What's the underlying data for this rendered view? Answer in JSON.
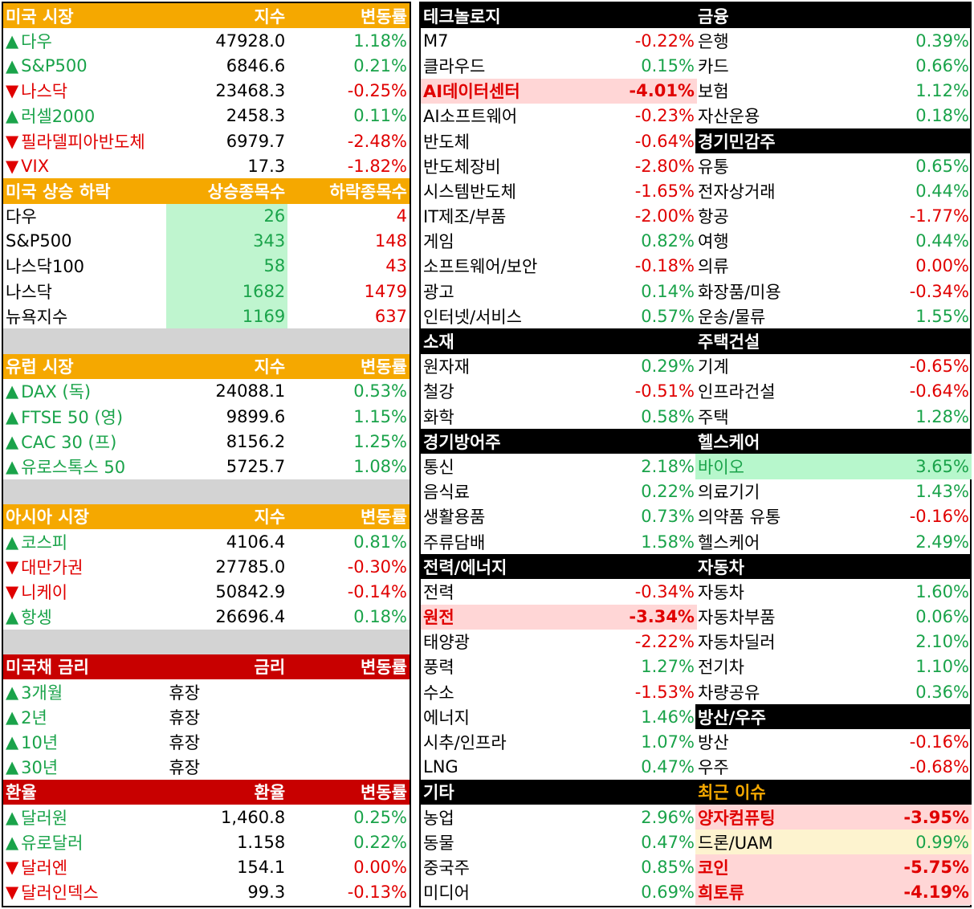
{
  "colors": {
    "up": "#1aa34a",
    "down": "#e00000",
    "header_orange": "#f5a800",
    "header_red": "#c80000",
    "header_black": "#000000",
    "gap": "#d3d3d3"
  },
  "left": {
    "us_market": {
      "header": [
        "미국 시장",
        "지수",
        "변동률"
      ],
      "rows": [
        {
          "dir": "up",
          "name": "다우",
          "value": "47928.0",
          "change": "1.18%"
        },
        {
          "dir": "up",
          "name": "S&P500",
          "value": "6846.6",
          "change": "0.21%"
        },
        {
          "dir": "down",
          "name": "나스닥",
          "value": "23468.3",
          "change": "-0.25%"
        },
        {
          "dir": "up",
          "name": "러셀2000",
          "value": "2458.3",
          "change": "0.11%"
        },
        {
          "dir": "down",
          "name": "필라델피아반도체",
          "value": "6979.7",
          "change": "-2.48%"
        },
        {
          "dir": "down",
          "name": "VIX",
          "value": "17.3",
          "change": "-1.82%"
        }
      ]
    },
    "breadth": {
      "header": [
        "미국 상승 하락",
        "상승종목수",
        "하락종목수"
      ],
      "rows": [
        {
          "name": "다우",
          "up": "26",
          "down": "4"
        },
        {
          "name": "S&P500",
          "up": "343",
          "down": "148"
        },
        {
          "name": "나스닥100",
          "up": "58",
          "down": "43"
        },
        {
          "name": "나스닥",
          "up": "1682",
          "down": "1479"
        },
        {
          "name": "뉴욕지수",
          "up": "1169",
          "down": "637"
        }
      ]
    },
    "europe": {
      "header": [
        "유럽 시장",
        "지수",
        "변동률"
      ],
      "rows": [
        {
          "dir": "up",
          "name": "DAX (독)",
          "value": "24088.1",
          "change": "0.53%"
        },
        {
          "dir": "up",
          "name": "FTSE 50 (영)",
          "value": "9899.6",
          "change": "1.15%"
        },
        {
          "dir": "up",
          "name": "CAC 30 (프)",
          "value": "8156.2",
          "change": "1.25%"
        },
        {
          "dir": "up",
          "name": "유로스톡스 50",
          "value": "5725.7",
          "change": "1.08%"
        }
      ]
    },
    "asia": {
      "header": [
        "아시아 시장",
        "지수",
        "변동률"
      ],
      "rows": [
        {
          "dir": "up",
          "name": "코스피",
          "value": "4106.4",
          "change": "0.81%"
        },
        {
          "dir": "down",
          "name": "대만가권",
          "value": "27785.0",
          "change": "-0.30%"
        },
        {
          "dir": "down",
          "name": "니케이",
          "value": "50842.9",
          "change": "-0.14%"
        },
        {
          "dir": "up",
          "name": "항셍",
          "value": "26696.4",
          "change": "0.18%"
        }
      ]
    },
    "treasury": {
      "header": [
        "미국채 금리",
        "금리",
        "변동률"
      ],
      "rows": [
        {
          "dir": "up",
          "name": "3개월",
          "value": "휴장",
          "change": ""
        },
        {
          "dir": "up",
          "name": "2년",
          "value": "휴장",
          "change": ""
        },
        {
          "dir": "up",
          "name": "10년",
          "value": "휴장",
          "change": ""
        },
        {
          "dir": "up",
          "name": "30년",
          "value": "휴장",
          "change": ""
        }
      ]
    },
    "fx": {
      "header": [
        "환율",
        "환율",
        "변동률"
      ],
      "rows": [
        {
          "dir": "up",
          "name": "달러원",
          "value": "1,460.8",
          "change": "0.25%"
        },
        {
          "dir": "up",
          "name": "유로달러",
          "value": "1.158",
          "change": "0.22%"
        },
        {
          "dir": "down",
          "name": "달러엔",
          "value": "154.1",
          "change": "0.00%"
        },
        {
          "dir": "down",
          "name": "달러인덱스",
          "value": "99.3",
          "change": "-0.13%"
        }
      ]
    }
  },
  "right": {
    "col1": [
      {
        "type": "header",
        "label": "테크놀로지"
      },
      {
        "name": "M7",
        "change": "-0.22%",
        "dir": "down"
      },
      {
        "name": "클라우드",
        "change": "0.15%",
        "dir": "up"
      },
      {
        "name": "AI데이터센터",
        "change": "-4.01%",
        "dir": "down",
        "highlight": "pink",
        "bold": true
      },
      {
        "name": "AI소프트웨어",
        "change": "-0.23%",
        "dir": "down"
      },
      {
        "name": "반도체",
        "change": "-0.64%",
        "dir": "down"
      },
      {
        "name": "반도체장비",
        "change": "-2.80%",
        "dir": "down"
      },
      {
        "name": "시스템반도체",
        "change": "-1.65%",
        "dir": "down"
      },
      {
        "name": "IT제조/부품",
        "change": "-2.00%",
        "dir": "down"
      },
      {
        "name": "게임",
        "change": "0.82%",
        "dir": "up"
      },
      {
        "name": "소프트웨어/보안",
        "change": "-0.18%",
        "dir": "down"
      },
      {
        "name": "광고",
        "change": "0.14%",
        "dir": "up"
      },
      {
        "name": "인터넷/서비스",
        "change": "0.57%",
        "dir": "up"
      },
      {
        "type": "header",
        "label": "소재"
      },
      {
        "name": "원자재",
        "change": "0.29%",
        "dir": "up"
      },
      {
        "name": "철강",
        "change": "-0.51%",
        "dir": "down"
      },
      {
        "name": "화학",
        "change": "0.58%",
        "dir": "up"
      },
      {
        "type": "header",
        "label": "경기방어주"
      },
      {
        "name": "통신",
        "change": "2.18%",
        "dir": "up"
      },
      {
        "name": "음식료",
        "change": "0.22%",
        "dir": "up"
      },
      {
        "name": "생활용품",
        "change": "0.73%",
        "dir": "up"
      },
      {
        "name": "주류담배",
        "change": "1.58%",
        "dir": "up"
      },
      {
        "type": "header",
        "label": "전력/에너지"
      },
      {
        "name": "전력",
        "change": "-0.34%",
        "dir": "down"
      },
      {
        "name": "원전",
        "change": "-3.34%",
        "dir": "down",
        "highlight": "pink",
        "bold": true
      },
      {
        "name": "태양광",
        "change": "-2.22%",
        "dir": "down"
      },
      {
        "name": "풍력",
        "change": "1.27%",
        "dir": "up"
      },
      {
        "name": "수소",
        "change": "-1.53%",
        "dir": "down"
      },
      {
        "name": "에너지",
        "change": "1.46%",
        "dir": "up"
      },
      {
        "name": "시추/인프라",
        "change": "1.07%",
        "dir": "up"
      },
      {
        "name": "LNG",
        "change": "0.47%",
        "dir": "up"
      },
      {
        "type": "header",
        "label": "기타"
      },
      {
        "name": "농업",
        "change": "2.96%",
        "dir": "up"
      },
      {
        "name": "동물",
        "change": "0.47%",
        "dir": "up"
      },
      {
        "name": "중국주",
        "change": "0.85%",
        "dir": "up"
      },
      {
        "name": "미디어",
        "change": "0.69%",
        "dir": "up"
      }
    ],
    "col2": [
      {
        "type": "header",
        "label": "금융"
      },
      {
        "name": "은행",
        "change": "0.39%",
        "dir": "up"
      },
      {
        "name": "카드",
        "change": "0.66%",
        "dir": "up"
      },
      {
        "name": "보험",
        "change": "1.12%",
        "dir": "up"
      },
      {
        "name": "자산운용",
        "change": "0.18%",
        "dir": "up"
      },
      {
        "type": "header",
        "label": "경기민감주"
      },
      {
        "name": "유통",
        "change": "0.65%",
        "dir": "up"
      },
      {
        "name": "전자상거래",
        "change": "0.44%",
        "dir": "up"
      },
      {
        "name": "항공",
        "change": "-1.77%",
        "dir": "down"
      },
      {
        "name": "여행",
        "change": "0.44%",
        "dir": "up"
      },
      {
        "name": "의류",
        "change": "0.00%",
        "dir": "down"
      },
      {
        "name": "화장품/미용",
        "change": "-0.34%",
        "dir": "down"
      },
      {
        "name": "운송/물류",
        "change": "1.55%",
        "dir": "up"
      },
      {
        "type": "header",
        "label": "주택건설"
      },
      {
        "name": "기계",
        "change": "-0.65%",
        "dir": "down"
      },
      {
        "name": "인프라건설",
        "change": "-0.64%",
        "dir": "down"
      },
      {
        "name": "주택",
        "change": "1.28%",
        "dir": "up"
      },
      {
        "type": "header",
        "label": "헬스케어"
      },
      {
        "name": "바이오",
        "change": "3.65%",
        "dir": "up",
        "highlight": "mint"
      },
      {
        "name": "의료기기",
        "change": "1.43%",
        "dir": "up"
      },
      {
        "name": "의약품 유통",
        "change": "-0.16%",
        "dir": "down"
      },
      {
        "name": "헬스케어",
        "change": "2.49%",
        "dir": "up"
      },
      {
        "type": "header",
        "label": "자동차"
      },
      {
        "name": "자동차",
        "change": "1.60%",
        "dir": "up"
      },
      {
        "name": "자동차부품",
        "change": "0.06%",
        "dir": "up"
      },
      {
        "name": "자동차딜러",
        "change": "2.10%",
        "dir": "up"
      },
      {
        "name": "전기차",
        "change": "1.10%",
        "dir": "up"
      },
      {
        "name": "차량공유",
        "change": "0.36%",
        "dir": "up"
      },
      {
        "type": "header",
        "label": "방산/우주"
      },
      {
        "name": "방산",
        "change": "-0.16%",
        "dir": "down"
      },
      {
        "name": "우주",
        "change": "-0.68%",
        "dir": "down"
      },
      {
        "type": "header",
        "label": "최근 이슈",
        "issue": true
      },
      {
        "name": "양자컴퓨팅",
        "change": "-3.95%",
        "dir": "down",
        "highlight": "pink",
        "bold": true
      },
      {
        "name": "드론/UAM",
        "change": "0.99%",
        "dir": "up",
        "highlight": "cream",
        "namecolor": "neutral"
      },
      {
        "name": "코인",
        "change": "-5.75%",
        "dir": "down",
        "highlight": "pink",
        "bold": true
      },
      {
        "name": "희토류",
        "change": "-4.19%",
        "dir": "down",
        "highlight": "pink",
        "bold": true
      }
    ]
  }
}
